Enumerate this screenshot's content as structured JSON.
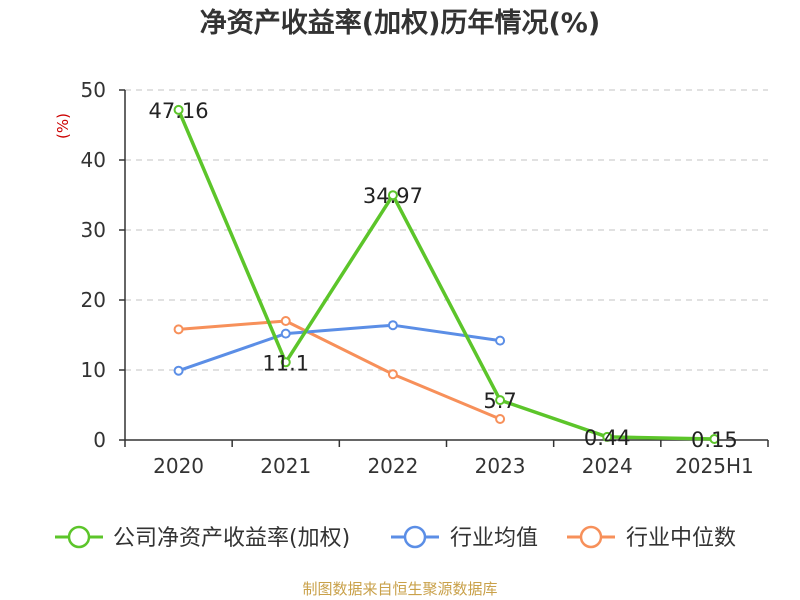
{
  "chart_data": {
    "type": "line",
    "title": "净资产收益率(加权)历年情况(%)",
    "ylabel": "(%)",
    "xlabel": "",
    "categories": [
      "2020",
      "2021",
      "2022",
      "2023",
      "2024",
      "2025H1"
    ],
    "ylim": [
      0,
      50
    ],
    "yticks": [
      0,
      10,
      20,
      30,
      40,
      50
    ],
    "grid": true,
    "legend_position": "bottom",
    "series": [
      {
        "name": "公司净资产收益率(加权)",
        "color": "#5cc52a",
        "values": [
          47.16,
          11.1,
          34.97,
          5.7,
          0.44,
          0.15
        ],
        "labels": [
          "47.16",
          "11.1",
          "34.97",
          "5.7",
          "0.44",
          "0.15"
        ]
      },
      {
        "name": "行业均值",
        "color": "#5b8ee6",
        "values": [
          9.9,
          15.2,
          16.4,
          14.2,
          null,
          null
        ]
      },
      {
        "name": "行业中位数",
        "color": "#f7905a",
        "values": [
          15.8,
          17.0,
          9.4,
          3.0,
          null,
          null
        ]
      }
    ]
  },
  "unit_color": "#cc0000",
  "source": {
    "text": "制图数据来自恒生聚源数据库",
    "color": "#c9a14a"
  }
}
